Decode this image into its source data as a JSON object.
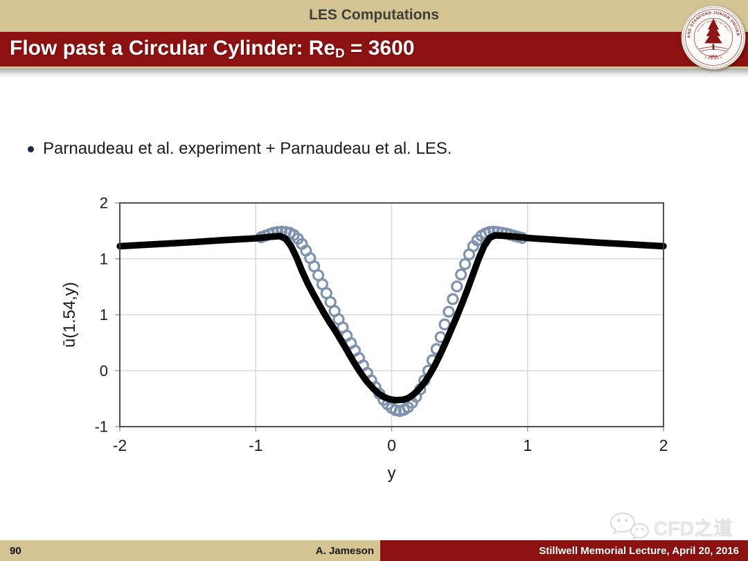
{
  "header": {
    "kicker": "LES Computations",
    "title_pre": "Flow past a Circular Cylinder: Re",
    "title_sub": "D",
    "title_post": " = 3600"
  },
  "seal": {
    "ring_text": "LELAND STANFORD JUNIOR UNIVERSITY",
    "motto_text": "DIE LUFT DER FREIHEIT WEHT",
    "stars_text": "✶  ✶  ✶        ✶  ✶  ✶",
    "year": "1891"
  },
  "bullet": {
    "text": "Parnaudeau et al. experiment + Parnaudeau et al. LES."
  },
  "chart_data": {
    "type": "line",
    "title": "",
    "xlabel": "y",
    "ylabel": "ū(1.54,y)",
    "xlim": [
      -2,
      2
    ],
    "ylim": [
      -1,
      2
    ],
    "grid": true,
    "legend_position": "none",
    "x_ticks": [
      {
        "value": -2,
        "label": "-2"
      },
      {
        "value": -1,
        "label": "-1"
      },
      {
        "value": 0,
        "label": "0"
      },
      {
        "value": 1,
        "label": "1"
      },
      {
        "value": 2,
        "label": "2"
      }
    ],
    "y_ticks": [
      {
        "value": 2,
        "label": "2"
      },
      {
        "value": 1.25,
        "label": "1"
      },
      {
        "value": 0.5,
        "label": "1"
      },
      {
        "value": -0.25,
        "label": "0"
      },
      {
        "value": -1,
        "label": "-1"
      }
    ],
    "series": [
      {
        "name": "Parnaudeau et al. experiment",
        "style": "open-circle",
        "color": "#7e91ad",
        "marker_radius": 7,
        "marker_stroke": 3.2,
        "points": [
          [
            -0.96,
            1.54
          ],
          [
            -0.93,
            1.56
          ],
          [
            -0.9,
            1.58
          ],
          [
            -0.87,
            1.6
          ],
          [
            -0.84,
            1.61
          ],
          [
            -0.81,
            1.615
          ],
          [
            -0.78,
            1.61
          ],
          [
            -0.75,
            1.6
          ],
          [
            -0.72,
            1.57
          ],
          [
            -0.69,
            1.52
          ],
          [
            -0.66,
            1.45
          ],
          [
            -0.63,
            1.36
          ],
          [
            -0.6,
            1.26
          ],
          [
            -0.57,
            1.15
          ],
          [
            -0.54,
            1.03
          ],
          [
            -0.51,
            0.91
          ],
          [
            -0.48,
            0.79
          ],
          [
            -0.45,
            0.67
          ],
          [
            -0.42,
            0.55
          ],
          [
            -0.39,
            0.44
          ],
          [
            -0.36,
            0.33
          ],
          [
            -0.33,
            0.22
          ],
          [
            -0.3,
            0.12
          ],
          [
            -0.27,
            0.02
          ],
          [
            -0.24,
            -0.08
          ],
          [
            -0.21,
            -0.18
          ],
          [
            -0.18,
            -0.28
          ],
          [
            -0.15,
            -0.38
          ],
          [
            -0.12,
            -0.47
          ],
          [
            -0.09,
            -0.56
          ],
          [
            -0.06,
            -0.64
          ],
          [
            -0.03,
            -0.7
          ],
          [
            0.0,
            -0.75
          ],
          [
            0.03,
            -0.78
          ],
          [
            0.06,
            -0.79
          ],
          [
            0.09,
            -0.775
          ],
          [
            0.12,
            -0.74
          ],
          [
            0.15,
            -0.68
          ],
          [
            0.18,
            -0.6
          ],
          [
            0.21,
            -0.5
          ],
          [
            0.24,
            -0.38
          ],
          [
            0.27,
            -0.25
          ],
          [
            0.3,
            -0.11
          ],
          [
            0.33,
            0.04
          ],
          [
            0.36,
            0.2
          ],
          [
            0.39,
            0.37
          ],
          [
            0.42,
            0.54
          ],
          [
            0.45,
            0.71
          ],
          [
            0.48,
            0.88
          ],
          [
            0.51,
            1.04
          ],
          [
            0.54,
            1.18
          ],
          [
            0.57,
            1.31
          ],
          [
            0.6,
            1.42
          ],
          [
            0.63,
            1.5
          ],
          [
            0.66,
            1.56
          ],
          [
            0.69,
            1.59
          ],
          [
            0.72,
            1.61
          ],
          [
            0.75,
            1.615
          ],
          [
            0.78,
            1.61
          ],
          [
            0.81,
            1.6
          ],
          [
            0.84,
            1.59
          ],
          [
            0.87,
            1.575
          ],
          [
            0.9,
            1.56
          ],
          [
            0.93,
            1.545
          ],
          [
            0.96,
            1.53
          ]
        ]
      },
      {
        "name": "Parnaudeau et al. LES",
        "style": "line",
        "color": "#000000",
        "line_width": 9.5,
        "points": [
          [
            -2.0,
            1.42
          ],
          [
            -1.75,
            1.445
          ],
          [
            -1.5,
            1.47
          ],
          [
            -1.25,
            1.5
          ],
          [
            -1.0,
            1.525
          ],
          [
            -0.9,
            1.545
          ],
          [
            -0.82,
            1.555
          ],
          [
            -0.78,
            1.52
          ],
          [
            -0.74,
            1.42
          ],
          [
            -0.7,
            1.27
          ],
          [
            -0.66,
            1.09
          ],
          [
            -0.62,
            0.93
          ],
          [
            -0.58,
            0.79
          ],
          [
            -0.54,
            0.66
          ],
          [
            -0.5,
            0.53
          ],
          [
            -0.46,
            0.41
          ],
          [
            -0.42,
            0.3
          ],
          [
            -0.38,
            0.18
          ],
          [
            -0.34,
            0.06
          ],
          [
            -0.3,
            -0.07
          ],
          [
            -0.26,
            -0.19
          ],
          [
            -0.22,
            -0.3
          ],
          [
            -0.18,
            -0.4
          ],
          [
            -0.14,
            -0.48
          ],
          [
            -0.1,
            -0.55
          ],
          [
            -0.06,
            -0.6
          ],
          [
            -0.02,
            -0.63
          ],
          [
            0.03,
            -0.645
          ],
          [
            0.08,
            -0.64
          ],
          [
            0.12,
            -0.62
          ],
          [
            0.16,
            -0.57
          ],
          [
            0.2,
            -0.5
          ],
          [
            0.24,
            -0.41
          ],
          [
            0.28,
            -0.3
          ],
          [
            0.32,
            -0.17
          ],
          [
            0.36,
            -0.02
          ],
          [
            0.4,
            0.14
          ],
          [
            0.44,
            0.31
          ],
          [
            0.48,
            0.48
          ],
          [
            0.52,
            0.66
          ],
          [
            0.56,
            0.85
          ],
          [
            0.6,
            1.05
          ],
          [
            0.64,
            1.25
          ],
          [
            0.68,
            1.42
          ],
          [
            0.72,
            1.53
          ],
          [
            0.76,
            1.565
          ],
          [
            0.82,
            1.56
          ],
          [
            0.9,
            1.55
          ],
          [
            1.0,
            1.53
          ],
          [
            1.25,
            1.5
          ],
          [
            1.5,
            1.47
          ],
          [
            1.75,
            1.445
          ],
          [
            2.0,
            1.42
          ]
        ]
      }
    ],
    "grid_color": "#d9d9d9",
    "frame_color": "#3f3f3f",
    "tick_color": "#9a9a9a",
    "label_color": "#1a1a1a"
  },
  "footer": {
    "page_number": "90",
    "author": "A. Jameson",
    "venue": "Stillwell Memorial Lecture, April 20, 2016"
  },
  "watermark": {
    "icon": "wechat-icon",
    "text": "CFD之道"
  },
  "colors": {
    "cardinal_red": "#8c1111",
    "sand_tan": "#d5c493",
    "marker_blue": "#7e91ad",
    "les_line": "#000000"
  }
}
